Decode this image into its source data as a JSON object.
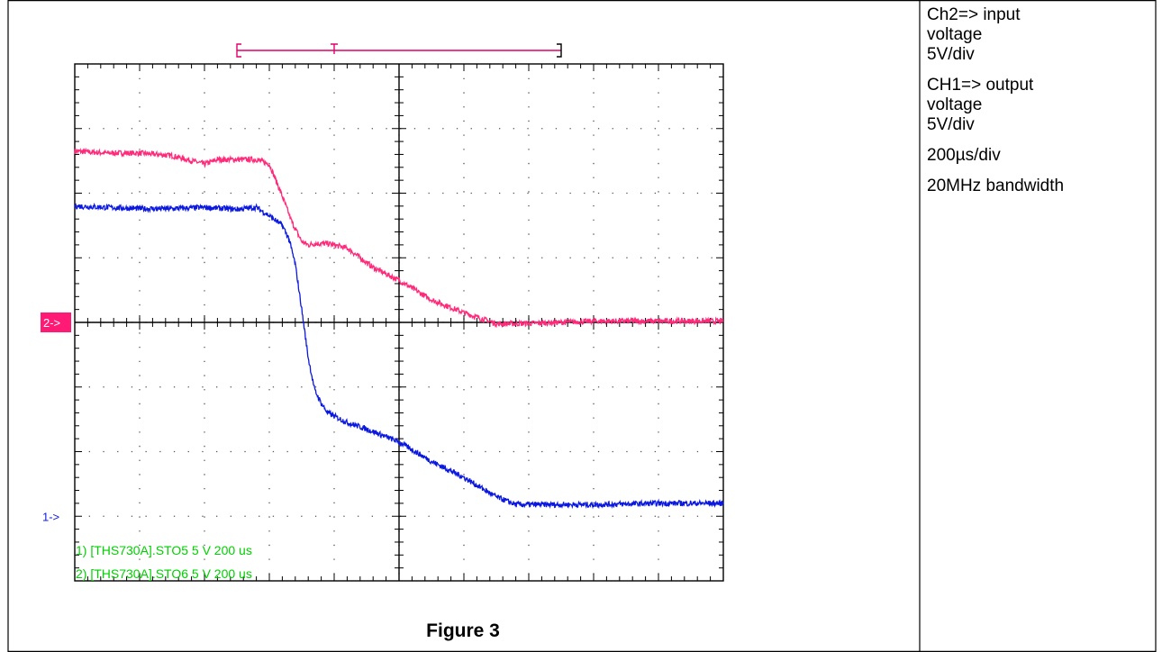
{
  "side_notes": [
    {
      "text": "Ch2=> input\nvoltage\n5V/div"
    },
    {
      "text": "CH1=> output\nvoltage\n5V/div"
    },
    {
      "text": "200µs/div"
    },
    {
      "text": "20MHz bandwidth"
    }
  ],
  "caption": "Figure 3",
  "chart_data": {
    "type": "line",
    "title": "",
    "grid": true,
    "divisions": {
      "x": 10,
      "y": 8
    },
    "xlim": [
      0,
      10
    ],
    "ylim": [
      0,
      8
    ],
    "markers": [
      {
        "label": "2->",
        "y": 4,
        "color": "#ff1a75",
        "boxed": true
      },
      {
        "label": "1->",
        "y": 1,
        "color": "#1020e0",
        "boxed": false
      }
    ],
    "trigger_bracket": {
      "x_start": 2.5,
      "x_trigger": 4.0,
      "x_end": 7.5,
      "color": "#e0006a"
    },
    "legend_lines": [
      "1) [THS730A].STO5  5  V   200 us",
      "2) [THS730A].STO6  5  V   200 us"
    ],
    "colors": {
      "ch2": "#ff2a7a",
      "ch1": "#0a18e0",
      "legend": "#00d000"
    },
    "series": [
      {
        "channel": "CH2",
        "x": [
          0,
          0.5,
          1.0,
          1.5,
          2.0,
          2.2,
          2.8,
          3.0,
          3.2,
          3.35,
          3.5,
          3.6,
          3.7,
          3.9,
          4.2,
          4.6,
          5.0,
          5.5,
          6.0,
          6.5,
          6.8,
          7.5,
          8.0,
          9.0,
          10
        ],
        "y": [
          6.65,
          6.62,
          6.62,
          6.58,
          6.45,
          6.52,
          6.52,
          6.45,
          5.95,
          5.55,
          5.25,
          5.2,
          5.22,
          5.22,
          5.15,
          4.85,
          4.65,
          4.35,
          4.15,
          3.98,
          3.98,
          4.0,
          4.02,
          4.02,
          4.02
        ]
      },
      {
        "channel": "CH1",
        "x": [
          0,
          0.5,
          1.0,
          1.5,
          2.0,
          2.5,
          2.8,
          3.0,
          3.2,
          3.3,
          3.4,
          3.5,
          3.6,
          3.7,
          3.8,
          3.9,
          4.0,
          4.2,
          4.5,
          5.0,
          5.5,
          6.0,
          6.5,
          6.8,
          7.5,
          8.0,
          9.0,
          10
        ],
        "y": [
          5.8,
          5.78,
          5.76,
          5.76,
          5.78,
          5.75,
          5.78,
          5.65,
          5.5,
          5.3,
          4.9,
          4.2,
          3.45,
          2.95,
          2.75,
          2.6,
          2.55,
          2.45,
          2.35,
          2.15,
          1.85,
          1.6,
          1.3,
          1.18,
          1.18,
          1.18,
          1.2,
          1.2
        ]
      }
    ]
  }
}
